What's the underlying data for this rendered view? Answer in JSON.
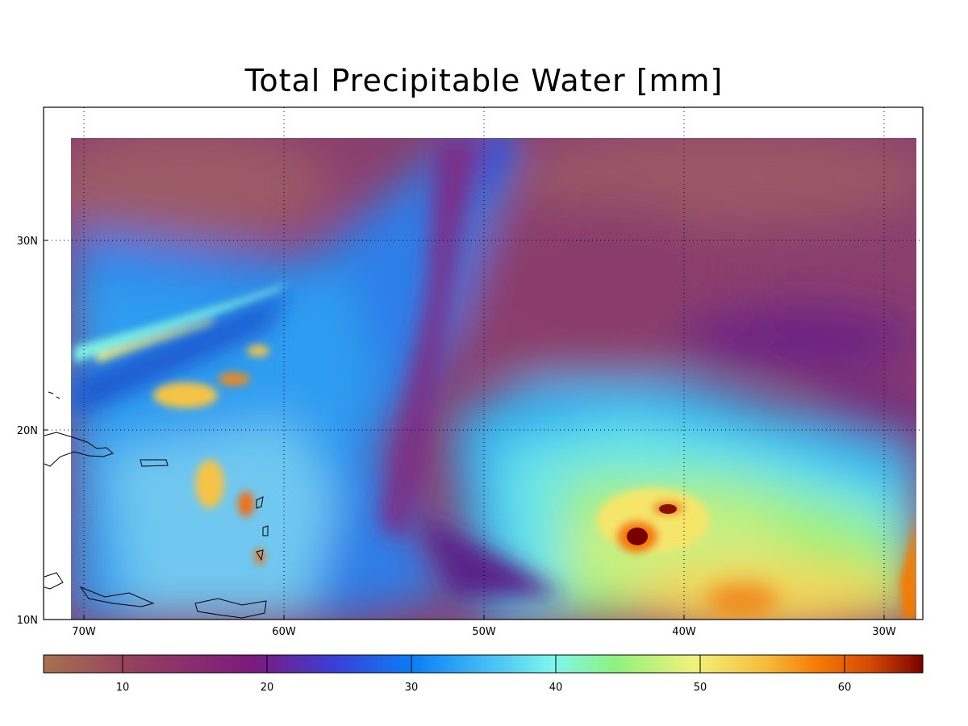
{
  "title": "Total Precipitable Water [mm]",
  "map": {
    "lon_labels": [
      "70W",
      "60W",
      "50W",
      "40W",
      "30W"
    ],
    "lat_labels": [
      "30N",
      "20N",
      "10N"
    ],
    "gridlines": "dotted"
  },
  "colorbar": {
    "tick_labels": [
      "10",
      "20",
      "30",
      "40",
      "50",
      "60"
    ],
    "range": [
      4,
      65
    ],
    "colors": [
      "#a8714f",
      "#94405f",
      "#7a1a7e",
      "#3b3ed6",
      "#0a7ef5",
      "#50c8f5",
      "#7ef7ee",
      "#8ef27e",
      "#f2f27a",
      "#f7bd3c",
      "#f57a06",
      "#d44a05",
      "#7a0000"
    ]
  }
}
